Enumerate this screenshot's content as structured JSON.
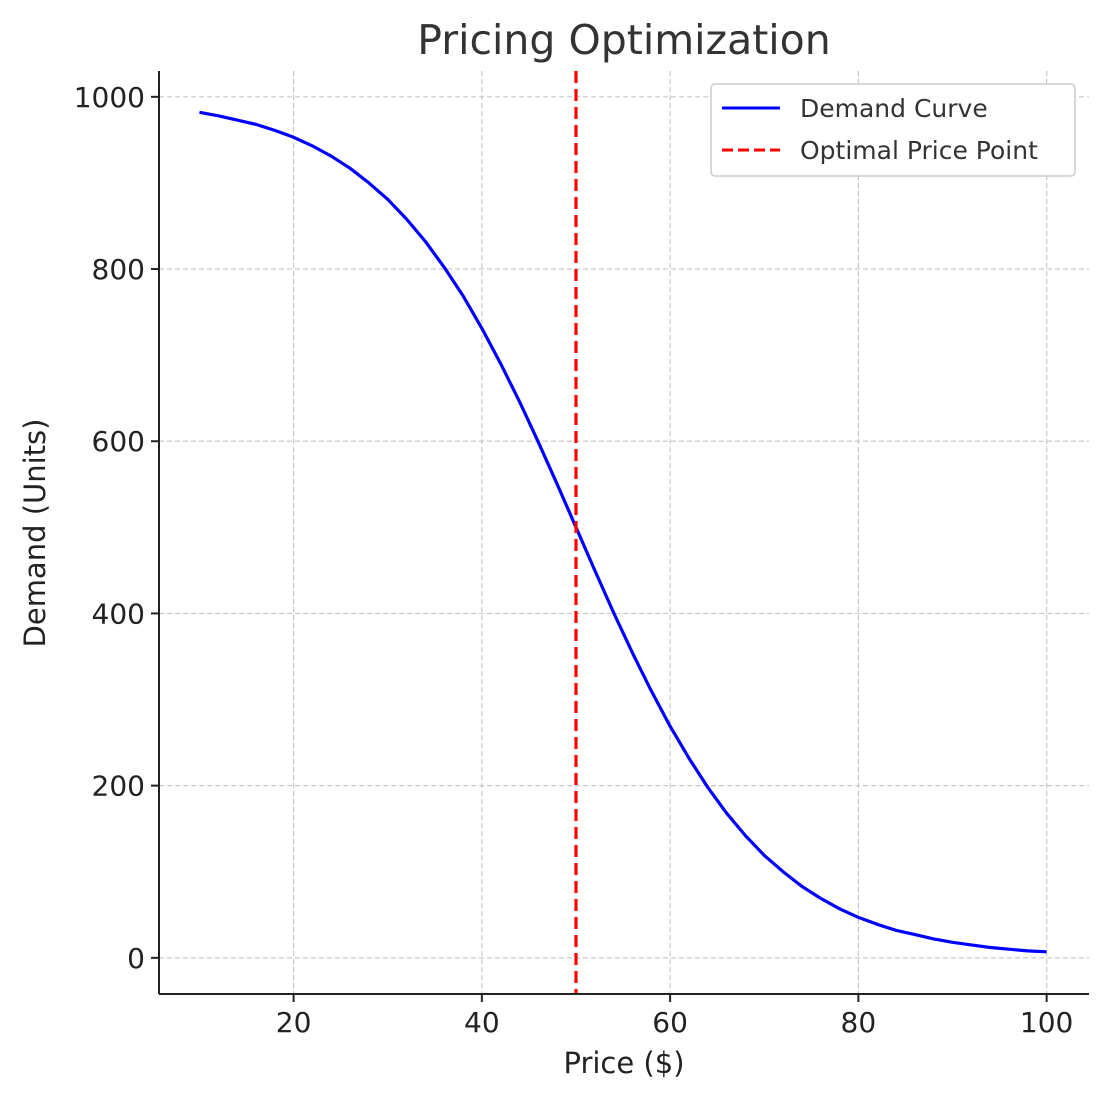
{
  "chart_data": {
    "type": "line",
    "title": "Pricing Optimization",
    "xlabel": "Price ($)",
    "ylabel": "Demand (Units)",
    "xlim": [
      5.7,
      104.5
    ],
    "ylim": [
      -42,
      1030
    ],
    "xticks": [
      20,
      40,
      60,
      80,
      100
    ],
    "yticks": [
      0,
      200,
      400,
      600,
      800,
      1000
    ],
    "grid": true,
    "legend_position": "top-right",
    "series": [
      {
        "name": "Demand Curve",
        "color": "#0000ff",
        "style": "solid",
        "x": [
          10,
          12,
          14,
          16,
          18,
          20,
          22,
          24,
          26,
          28,
          30,
          32,
          34,
          36,
          38,
          40,
          42,
          44,
          46,
          48,
          50,
          52,
          54,
          56,
          58,
          60,
          62,
          64,
          66,
          68,
          70,
          72,
          74,
          76,
          78,
          80,
          82,
          84,
          86,
          88,
          90,
          92,
          94,
          96,
          98,
          100
        ],
        "y": [
          982,
          978,
          973,
          968,
          961,
          953,
          943,
          931,
          917,
          900,
          881,
          858,
          832,
          802,
          769,
          731,
          690,
          646,
          599,
          550,
          500,
          450,
          401,
          354,
          310,
          269,
          232,
          198,
          168,
          142,
          119,
          100,
          83,
          69,
          57,
          47,
          39,
          32,
          27,
          22,
          18,
          15,
          12,
          10,
          8,
          7
        ]
      },
      {
        "name": "Optimal Price Point",
        "color": "#ff0000",
        "style": "dashed",
        "vline_x": 50
      }
    ]
  }
}
